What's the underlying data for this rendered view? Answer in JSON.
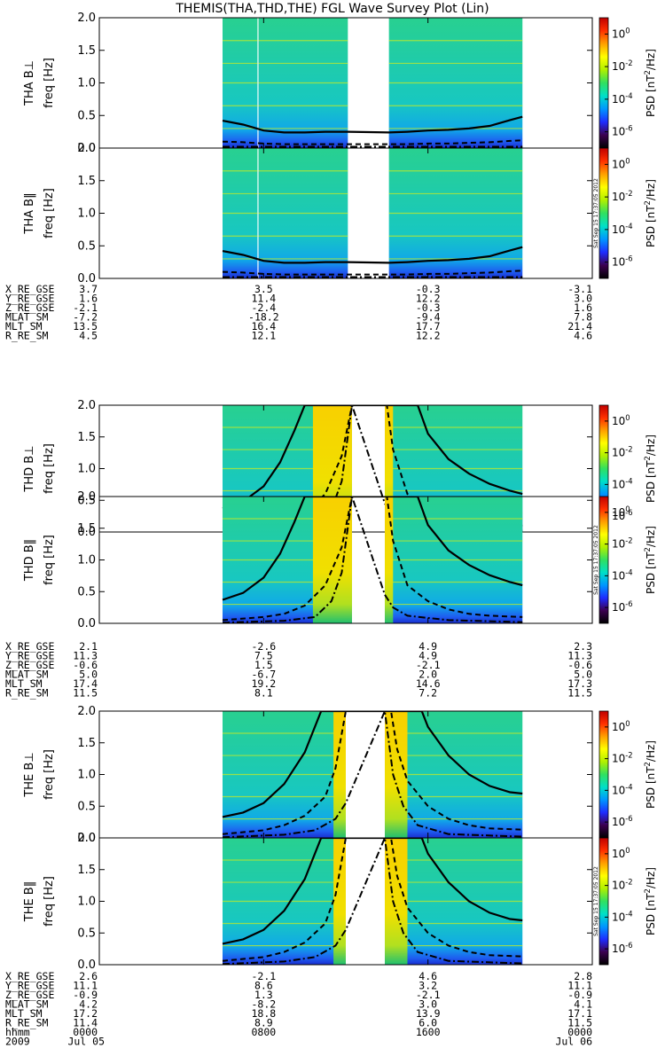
{
  "title": "THEMIS(THA,THD,THE) FGL Wave Survey Plot (Lin)",
  "chart_data": {
    "type": "heatmap",
    "x_axis": {
      "row_label": "hhmm",
      "tick_labels": [
        "0000",
        "0800",
        "1600",
        "0000"
      ],
      "date_row_label": "2009",
      "date_labels": [
        "Jul 05",
        "",
        "",
        "Jul 06"
      ],
      "range_hours": [
        0,
        24
      ]
    },
    "y_axis": {
      "label": "freq [Hz]",
      "ylim": [
        0,
        2.0
      ],
      "ticks": [
        "0.0",
        "0.5",
        "1.0",
        "1.5",
        "2.0"
      ]
    },
    "colorbar": {
      "label": "PSD [nT²/Hz]",
      "scale": "log",
      "range_exp": [
        -7,
        1
      ],
      "tick_labels": [
        "10⁰",
        "10⁻²",
        "10⁻⁴",
        "10⁻⁶"
      ],
      "tick_exp": [
        0,
        -2,
        -4,
        -6
      ],
      "stops": [
        "#000000",
        "#3c0050",
        "#1e2cff",
        "#0096ff",
        "#00e0c8",
        "#30e060",
        "#b0f000",
        "#ffff00",
        "#ffa000",
        "#ff3000",
        "#c00000"
      ]
    },
    "stamp": "Sat Sep 15 17:37:05 2012",
    "probes": [
      {
        "id": "THA",
        "data_intervals": [
          [
            6.0,
            7.7
          ],
          [
            7.75,
            12.1
          ],
          [
            14.1,
            20.6
          ]
        ],
        "bright_band": [],
        "panels": [
          {
            "label": "THA B⊥",
            "has_stamp": false
          },
          {
            "label": "THA B‖",
            "has_stamp": true
          }
        ],
        "curves": {
          "solid": [
            [
              6.0,
              0.42
            ],
            [
              7.0,
              0.36
            ],
            [
              8.0,
              0.27
            ],
            [
              9.0,
              0.24
            ],
            [
              10.0,
              0.24
            ],
            [
              11.0,
              0.25
            ],
            [
              12.1,
              0.25
            ],
            [
              14.1,
              0.24
            ],
            [
              15.0,
              0.25
            ],
            [
              16.0,
              0.27
            ],
            [
              17.0,
              0.28
            ],
            [
              18.0,
              0.3
            ],
            [
              19.0,
              0.34
            ],
            [
              20.0,
              0.43
            ],
            [
              20.6,
              0.48
            ]
          ],
          "dashed": [
            [
              6.0,
              0.1
            ],
            [
              7.0,
              0.09
            ],
            [
              8.0,
              0.07
            ],
            [
              9.0,
              0.06
            ],
            [
              10.0,
              0.06
            ],
            [
              11.0,
              0.06
            ],
            [
              12.1,
              0.06
            ],
            [
              14.1,
              0.06
            ],
            [
              15.0,
              0.06
            ],
            [
              16.0,
              0.07
            ],
            [
              17.0,
              0.07
            ],
            [
              18.0,
              0.08
            ],
            [
              19.0,
              0.09
            ],
            [
              20.0,
              0.11
            ],
            [
              20.6,
              0.12
            ]
          ],
          "dashdot": [
            [
              6.0,
              0.02
            ],
            [
              12.1,
              0.02
            ],
            [
              14.1,
              0.02
            ],
            [
              20.6,
              0.02
            ]
          ]
        },
        "ephemeris": [
          {
            "name": "X_RE_GSE",
            "values": [
              "3.7",
              "3.5",
              "-0.3",
              "-3.1"
            ]
          },
          {
            "name": "Y_RE_GSE",
            "values": [
              "1.6",
              "11.4",
              "12.2",
              "3.0"
            ]
          },
          {
            "name": "Z_RE_GSE",
            "values": [
              "-2.1",
              "-2.4",
              "-0.3",
              "1.6"
            ]
          },
          {
            "name": "MLAT_SM",
            "values": [
              "-7.2",
              "-18.2",
              "-9.4",
              "7.8"
            ]
          },
          {
            "name": "MLT_SM",
            "values": [
              "13.5",
              "16.4",
              "17.7",
              "21.4"
            ]
          },
          {
            "name": "R_RE_SM",
            "values": [
              "4.5",
              "12.1",
              "12.2",
              "4.6"
            ]
          }
        ]
      },
      {
        "id": "THD",
        "data_intervals": [
          [
            6.0,
            20.6
          ]
        ],
        "gap": [
          12.3,
          13.9
        ],
        "bright_band": [
          [
            10.4,
            12.3
          ],
          [
            13.9,
            14.3
          ]
        ],
        "panels": [
          {
            "label": "THD B⊥",
            "has_stamp": false
          },
          {
            "label": "THD B‖",
            "has_stamp": true
          }
        ],
        "curves": {
          "solid": [
            [
              6.0,
              0.37
            ],
            [
              7.0,
              0.48
            ],
            [
              8.0,
              0.72
            ],
            [
              8.8,
              1.1
            ],
            [
              9.5,
              1.6
            ],
            [
              10.0,
              2.0
            ],
            [
              15.5,
              2.0
            ],
            [
              16.0,
              1.55
            ],
            [
              17.0,
              1.15
            ],
            [
              18.0,
              0.92
            ],
            [
              19.0,
              0.76
            ],
            [
              20.0,
              0.65
            ],
            [
              20.6,
              0.6
            ]
          ],
          "dashed": [
            [
              6.0,
              0.05
            ],
            [
              8.0,
              0.1
            ],
            [
              9.0,
              0.15
            ],
            [
              10.0,
              0.28
            ],
            [
              11.0,
              0.6
            ],
            [
              11.8,
              1.2
            ],
            [
              12.3,
              2.0
            ],
            [
              14.0,
              2.0
            ],
            [
              14.3,
              1.3
            ],
            [
              15.0,
              0.6
            ],
            [
              16.0,
              0.35
            ],
            [
              17.0,
              0.22
            ],
            [
              18.0,
              0.15
            ],
            [
              19.0,
              0.12
            ],
            [
              20.6,
              0.1
            ]
          ],
          "dashdot": [
            [
              6.0,
              0.01
            ],
            [
              9.0,
              0.04
            ],
            [
              10.5,
              0.1
            ],
            [
              11.3,
              0.35
            ],
            [
              11.8,
              0.8
            ],
            [
              12.3,
              2.0
            ],
            [
              13.9,
              0.45
            ],
            [
              14.3,
              0.25
            ],
            [
              15.0,
              0.12
            ],
            [
              17.0,
              0.05
            ],
            [
              20.6,
              0.02
            ]
          ]
        },
        "ephemeris": [
          {
            "name": "X_RE_GSE",
            "values": [
              "2.1",
              "-2.6",
              "4.9",
              "2.3"
            ]
          },
          {
            "name": "Y_RE_GSE",
            "values": [
              "11.3",
              "7.5",
              "4.9",
              "11.3"
            ]
          },
          {
            "name": "Z_RE_GSE",
            "values": [
              "-0.6",
              "1.5",
              "-2.1",
              "-0.6"
            ]
          },
          {
            "name": "MLAT_SM",
            "values": [
              "5.0",
              "-6.7",
              "2.0",
              "5.0"
            ]
          },
          {
            "name": "MLT_SM",
            "values": [
              "17.4",
              "19.2",
              "14.6",
              "17.3"
            ]
          },
          {
            "name": "R_RE_SM",
            "values": [
              "11.5",
              "8.1",
              "7.2",
              "11.5"
            ]
          }
        ]
      },
      {
        "id": "THE",
        "data_intervals": [
          [
            6.0,
            20.6
          ]
        ],
        "gap": [
          12.0,
          13.9
        ],
        "bright_band": [
          [
            11.4,
            12.0
          ],
          [
            13.9,
            15.0
          ]
        ],
        "panels": [
          {
            "label": "THE B⊥",
            "has_stamp": false
          },
          {
            "label": "THE B‖",
            "has_stamp": true
          }
        ],
        "curves": {
          "solid": [
            [
              6.0,
              0.33
            ],
            [
              7.0,
              0.4
            ],
            [
              8.0,
              0.55
            ],
            [
              9.0,
              0.85
            ],
            [
              10.0,
              1.35
            ],
            [
              10.8,
              2.0
            ],
            [
              15.7,
              2.0
            ],
            [
              16.0,
              1.75
            ],
            [
              17.0,
              1.3
            ],
            [
              18.0,
              1.0
            ],
            [
              19.0,
              0.82
            ],
            [
              20.0,
              0.72
            ],
            [
              20.6,
              0.7
            ]
          ],
          "dashed": [
            [
              6.0,
              0.06
            ],
            [
              8.0,
              0.12
            ],
            [
              9.0,
              0.2
            ],
            [
              10.0,
              0.35
            ],
            [
              11.0,
              0.65
            ],
            [
              11.5,
              1.1
            ],
            [
              12.0,
              2.0
            ],
            [
              14.2,
              2.0
            ],
            [
              14.5,
              1.4
            ],
            [
              15.0,
              0.9
            ],
            [
              16.0,
              0.5
            ],
            [
              17.0,
              0.3
            ],
            [
              18.0,
              0.2
            ],
            [
              19.0,
              0.15
            ],
            [
              20.6,
              0.13
            ]
          ],
          "dashdot": [
            [
              6.0,
              0.01
            ],
            [
              9.0,
              0.05
            ],
            [
              10.5,
              0.12
            ],
            [
              11.5,
              0.3
            ],
            [
              12.0,
              0.55
            ],
            [
              13.9,
              2.0
            ],
            [
              14.3,
              1.0
            ],
            [
              14.8,
              0.5
            ],
            [
              15.5,
              0.2
            ],
            [
              17.0,
              0.06
            ],
            [
              20.6,
              0.02
            ]
          ]
        },
        "ephemeris": [
          {
            "name": "X_RE_GSE",
            "values": [
              "2.6",
              "-2.1",
              "4.6",
              "2.8"
            ]
          },
          {
            "name": "Y_RE_GSE",
            "values": [
              "11.1",
              "8.6",
              "3.2",
              "11.1"
            ]
          },
          {
            "name": "Z_RE_GSE",
            "values": [
              "-0.9",
              "1.3",
              "-2.1",
              "-0.9"
            ]
          },
          {
            "name": "MLAT_SM",
            "values": [
              "4.2",
              "-8.2",
              "3.0",
              "4.1"
            ]
          },
          {
            "name": "MLT_SM",
            "values": [
              "17.2",
              "18.8",
              "13.9",
              "17.1"
            ]
          },
          {
            "name": "R_RE_SM",
            "values": [
              "11.4",
              "8.9",
              "6.0",
              "11.5"
            ]
          }
        ]
      }
    ]
  }
}
